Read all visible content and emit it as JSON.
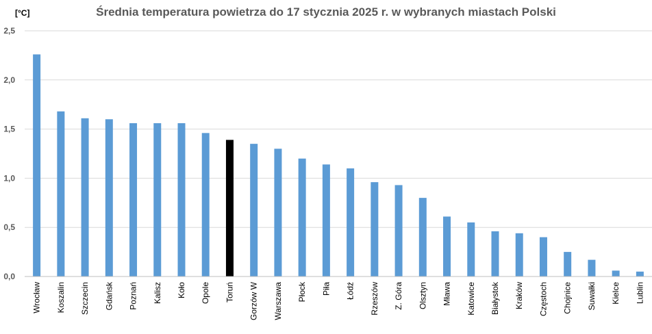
{
  "chart_data": {
    "type": "bar",
    "title": "Średnia temperatura powietrza do 17 stycznia 2025 r. w wybranych miastach Polski",
    "y_unit_label": "[°C]",
    "ylim": [
      0,
      2.5
    ],
    "yticks": [
      "0,0",
      "0,5",
      "1,0",
      "1,5",
      "2,0",
      "2,5"
    ],
    "ytick_values": [
      0,
      0.5,
      1.0,
      1.5,
      2.0,
      2.5
    ],
    "grid": true,
    "categories": [
      "Wrocław",
      "Koszalin",
      "Szczecin",
      "Gdańsk",
      "Poznań",
      "Kalisz",
      "Koło",
      "Opole",
      "Toruń",
      "Gorzów W",
      "Warszawa",
      "Płock",
      "Piła",
      "Łódź",
      "Rzeszów",
      "Z. Góra",
      "Olsztyn",
      "Mława",
      "Katowice",
      "Białystok",
      "Kraków",
      "Częstoch",
      "Chojnice",
      "Suwałki",
      "Kielce",
      "Lublin"
    ],
    "values": [
      2.26,
      1.68,
      1.61,
      1.6,
      1.56,
      1.56,
      1.56,
      1.46,
      1.39,
      1.35,
      1.3,
      1.2,
      1.14,
      1.1,
      0.96,
      0.93,
      0.8,
      0.61,
      0.55,
      0.46,
      0.44,
      0.4,
      0.25,
      0.17,
      0.06,
      0.05
    ],
    "bar_color": "#5b9bd5",
    "highlight": {
      "category": "Toruń",
      "color": "#000000"
    }
  }
}
